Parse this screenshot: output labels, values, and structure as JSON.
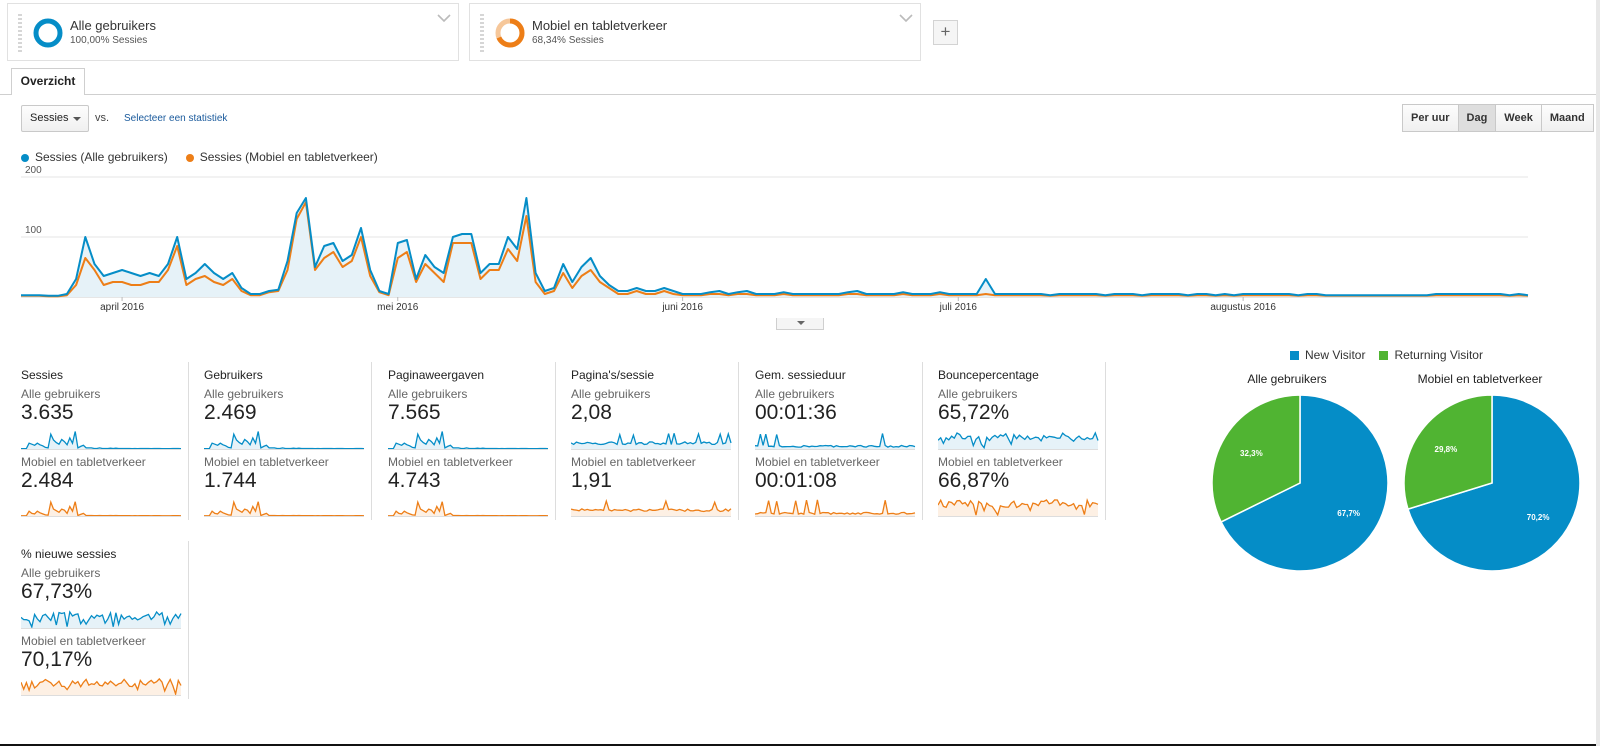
{
  "segments": [
    {
      "name": "Alle gebruikers",
      "sub": "100,00% Sessies",
      "color": "#058dc7",
      "fraction": 1.0
    },
    {
      "name": "Mobiel en tabletverkeer",
      "sub": "68,34% Sessies",
      "color": "#ed7e17",
      "fraction": 0.6834
    }
  ],
  "add_segment_label": "+",
  "tab_label": "Overzicht",
  "toolbar": {
    "metric": "Sessies",
    "vs": "vs.",
    "select_stat": "Selecteer een statistiek",
    "granularity": [
      "Per uur",
      "Dag",
      "Week",
      "Maand"
    ],
    "active_granularity": "Dag"
  },
  "chart_legend": [
    "Sessies (Alle gebruikers)",
    "Sessies (Mobiel en tabletverkeer)"
  ],
  "chart_data": {
    "type": "line",
    "y_ticks": [
      "200",
      "100"
    ],
    "ylim": [
      0,
      200
    ],
    "x_labels": [
      {
        "label": "april 2016",
        "day": 11
      },
      {
        "label": "mei 2016",
        "day": 41
      },
      {
        "label": "juni 2016",
        "day": 72
      },
      {
        "label": "juli 2016",
        "day": 102
      },
      {
        "label": "augustus 2016",
        "day": 133
      }
    ],
    "series": [
      {
        "name": "Sessies (Alle gebruikers)",
        "color": "#058dc7",
        "values": [
          3,
          3,
          3,
          2,
          2,
          5,
          30,
          100,
          55,
          35,
          40,
          45,
          40,
          35,
          40,
          35,
          55,
          100,
          30,
          40,
          55,
          40,
          30,
          40,
          15,
          5,
          5,
          10,
          12,
          60,
          140,
          165,
          50,
          85,
          90,
          60,
          70,
          115,
          45,
          10,
          5,
          90,
          95,
          30,
          70,
          50,
          40,
          100,
          105,
          105,
          40,
          55,
          55,
          100,
          80,
          165,
          40,
          10,
          15,
          55,
          25,
          50,
          65,
          35,
          20,
          10,
          10,
          15,
          10,
          10,
          15,
          10,
          5,
          5,
          5,
          8,
          10,
          5,
          8,
          10,
          5,
          5,
          5,
          8,
          5,
          5,
          5,
          5,
          5,
          5,
          8,
          10,
          5,
          5,
          5,
          5,
          8,
          5,
          5,
          5,
          8,
          5,
          5,
          5,
          5,
          30,
          5,
          5,
          5,
          5,
          5,
          5,
          3,
          5,
          5,
          5,
          5,
          5,
          3,
          5,
          5,
          5,
          3,
          5,
          5,
          5,
          5,
          3,
          5,
          5,
          3,
          5,
          3,
          5,
          5,
          5,
          5,
          5,
          5,
          3,
          5,
          5,
          3,
          3,
          3,
          3,
          3,
          3,
          3,
          3,
          3,
          3,
          3,
          3,
          5,
          5,
          5,
          5,
          5,
          5,
          5,
          5,
          3,
          5,
          3
        ]
      },
      {
        "name": "Sessies (Mobiel en tabletverkeer)",
        "color": "#ed7e17",
        "values": [
          2,
          2,
          2,
          1,
          1,
          3,
          20,
          65,
          45,
          20,
          25,
          25,
          20,
          20,
          25,
          25,
          45,
          85,
          20,
          30,
          35,
          25,
          20,
          30,
          10,
          3,
          3,
          8,
          10,
          45,
          130,
          158,
          45,
          65,
          75,
          50,
          60,
          100,
          35,
          8,
          3,
          65,
          75,
          25,
          55,
          40,
          25,
          90,
          90,
          90,
          30,
          45,
          45,
          80,
          60,
          135,
          25,
          5,
          10,
          40,
          15,
          35,
          45,
          25,
          15,
          5,
          5,
          10,
          5,
          5,
          10,
          5,
          3,
          3,
          3,
          5,
          5,
          3,
          5,
          5,
          3,
          3,
          3,
          5,
          3,
          3,
          3,
          3,
          3,
          3,
          5,
          5,
          3,
          3,
          3,
          3,
          5,
          3,
          3,
          3,
          5,
          3,
          3,
          3,
          3,
          5,
          3,
          3,
          3,
          3,
          3,
          3,
          2,
          3,
          3,
          3,
          3,
          3,
          2,
          3,
          3,
          3,
          2,
          3,
          3,
          3,
          3,
          2,
          3,
          3,
          2,
          3,
          2,
          3,
          3,
          3,
          3,
          3,
          3,
          2,
          3,
          3,
          2,
          2,
          2,
          2,
          2,
          2,
          2,
          2,
          2,
          2,
          2,
          2,
          3,
          3,
          3,
          3,
          3,
          3,
          3,
          3,
          2,
          3,
          2
        ]
      }
    ]
  },
  "metrics": [
    {
      "title": "Sessies",
      "l1": "Alle gebruikers",
      "v1": "3.635",
      "l2": "Mobiel en tabletverkeer",
      "v2": "2.484",
      "pattern": "spiky_early"
    },
    {
      "title": "Gebruikers",
      "l1": "Alle gebruikers",
      "v1": "2.469",
      "l2": "Mobiel en tabletverkeer",
      "v2": "1.744",
      "pattern": "spiky_early"
    },
    {
      "title": "Paginaweergaven",
      "l1": "Alle gebruikers",
      "v1": "7.565",
      "l2": "Mobiel en tabletverkeer",
      "v2": "4.743",
      "pattern": "spiky_early"
    },
    {
      "title": "Pagina's/sessie",
      "l1": "Alle gebruikers",
      "v1": "2,08",
      "l2": "Mobiel en tabletverkeer",
      "v2": "1,91",
      "pattern": "flat_spikes"
    },
    {
      "title": "Gem. sessieduur",
      "l1": "Alle gebruikers",
      "v1": "00:01:36",
      "l2": "Mobiel en tabletverkeer",
      "v2": "00:01:08",
      "pattern": "sparse_spikes"
    },
    {
      "title": "Bouncepercentage",
      "l1": "Alle gebruikers",
      "v1": "65,72%",
      "l2": "Mobiel en tabletverkeer",
      "v2": "66,87%",
      "pattern": "high_noise"
    },
    {
      "title": "% nieuwe sessies",
      "l1": "Alle gebruikers",
      "v1": "67,73%",
      "l2": "Mobiel en tabletverkeer",
      "v2": "70,17%",
      "pattern": "high_noise"
    }
  ],
  "pie_legend": [
    {
      "label": "New Visitor",
      "color": "#058dc7"
    },
    {
      "label": "Returning Visitor",
      "color": "#50b432"
    }
  ],
  "pies": [
    {
      "title": "Alle gebruikers",
      "slices": [
        {
          "label": "67,7%",
          "value": 67.7
        },
        {
          "label": "32,3%",
          "value": 32.3
        }
      ]
    },
    {
      "title": "Mobiel en tabletverkeer",
      "slices": [
        {
          "label": "70,2%",
          "value": 70.2
        },
        {
          "label": "29,8%",
          "value": 29.8
        }
      ]
    }
  ]
}
